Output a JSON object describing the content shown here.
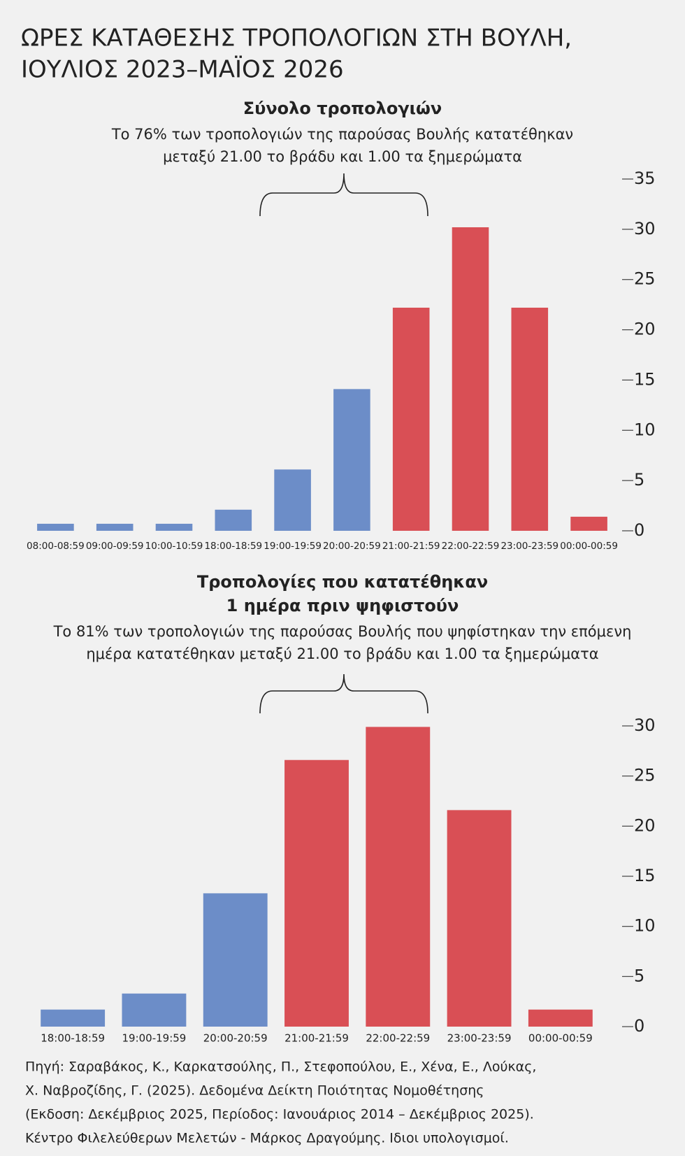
{
  "title": [
    "ΩΡΕΣ ΚΑΤΑΘΕΣΗΣ ΤΡΟΠΟΛΟΓΙΩΝ ΣΤΗ ΒΟΥΛΗ,",
    "ΙΟΥΛΙΟΣ 2023–ΜΑΪΟΣ 2026"
  ],
  "chart_data": [
    {
      "type": "bar",
      "title": [
        "Σύνολο τροπολογιών"
      ],
      "subtitle": [
        "Το 76% των τροπολογιών της παρούσας Βουλής κατατέθηκαν",
        "μεταξύ 21.00 το βράδυ και 1.00 τα ξημερώματα"
      ],
      "categories": [
        "08:00-08:59",
        "09:00-09:59",
        "10:00-10:59",
        "18:00-18:59",
        "19:00-19:59",
        "20:00-20:59",
        "21:00-21:59",
        "22:00-22:59",
        "23:00-23:59",
        "00:00-00:59"
      ],
      "values": [
        0.7,
        0.7,
        0.7,
        2.1,
        6.1,
        14.1,
        22.2,
        30.2,
        22.2,
        1.4
      ],
      "colors": [
        "#6c8dc8",
        "#6c8dc8",
        "#6c8dc8",
        "#6c8dc8",
        "#6c8dc8",
        "#6c8dc8",
        "#d94f55",
        "#d94f55",
        "#d94f55",
        "#d94f55"
      ],
      "ylim": [
        0,
        35
      ],
      "yticks": [
        0,
        5,
        10,
        15,
        20,
        25,
        30,
        35
      ]
    },
    {
      "type": "bar",
      "title": [
        "Τροπολογίες που κατατέθηκαν",
        "1 ημέρα πριν ψηφιστούν"
      ],
      "subtitle": [
        "Το 81% των τροπολογιών της παρούσας Βουλής που ψηφίστηκαν την επόμενη",
        "ημέρα κατατέθηκαν μεταξύ 21.00 το βράδυ και 1.00 τα ξημερώματα"
      ],
      "categories": [
        "18:00-18:59",
        "19:00-19:59",
        "20:00-20:59",
        "21:00-21:59",
        "22:00-22:59",
        "23:00-23:59",
        "00:00-00:59"
      ],
      "values": [
        1.7,
        3.3,
        13.3,
        26.6,
        29.9,
        21.6,
        1.7
      ],
      "colors": [
        "#6c8dc8",
        "#6c8dc8",
        "#6c8dc8",
        "#d94f55",
        "#d94f55",
        "#d94f55",
        "#d94f55"
      ],
      "ylim": [
        0,
        30
      ],
      "yticks": [
        0,
        5,
        10,
        15,
        20,
        25,
        30
      ]
    }
  ],
  "source": [
    "Πηγή: Σαραβάκος, Κ., Καρκατσούλης, Π., Στεφοπούλου, Ε., Χένα, Ε., Λούκας,",
    "Χ. Ναβροζίδης, Γ. (2025). Δεδομένα Δείκτη Ποιότητας Νομοθέτησης",
    "(Εκδοση: Δεκέμβριος 2025, Περίοδος: Ιανουάριος 2014 – Δεκέμβριος 2025).",
    "Κέντρο Φιλελεύθερων Μελετών - Μάρκος Δραγούμης. Ιδιοι υπολογισμοί."
  ]
}
